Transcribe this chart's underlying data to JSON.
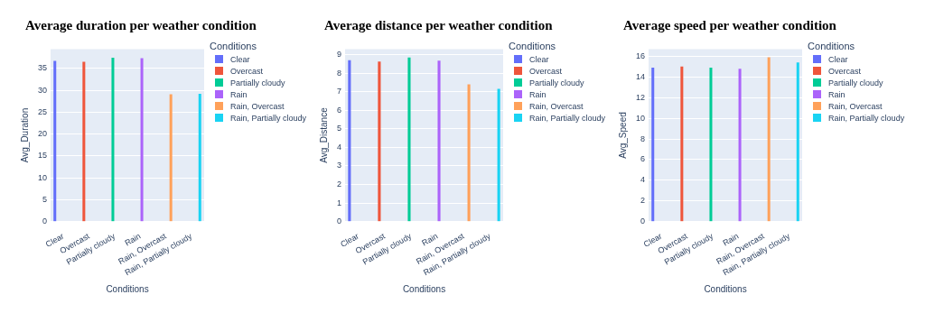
{
  "chart_data": [
    {
      "type": "bar",
      "title": "Average duration per weather condition",
      "xlabel": "Conditions",
      "ylabel": "Avg_Duration",
      "legend_title": "Conditions",
      "legend": "right",
      "grid": "y",
      "categories": [
        "Clear",
        "Overcast",
        "Partially cloudy",
        "Rain",
        "Rain, Overcast",
        "Rain, Partially cloudy"
      ],
      "ylim": [
        0,
        39.4
      ],
      "yticks": [
        0,
        5,
        10,
        15,
        20,
        25,
        30,
        35
      ],
      "series": [
        {
          "name": "Clear",
          "color": "#636efa",
          "values": [
            36.7,
            null,
            null,
            null,
            null,
            null
          ]
        },
        {
          "name": "Overcast",
          "color": "#ef553b",
          "values": [
            null,
            36.5,
            null,
            null,
            null,
            null
          ]
        },
        {
          "name": "Partially cloudy",
          "color": "#00cc96",
          "values": [
            null,
            null,
            37.4,
            null,
            null,
            null
          ]
        },
        {
          "name": "Rain",
          "color": "#ab63fa",
          "values": [
            null,
            null,
            null,
            37.3,
            null,
            null
          ]
        },
        {
          "name": "Rain, Overcast",
          "color": "#ffa15a",
          "values": [
            null,
            null,
            null,
            null,
            29.1,
            null
          ]
        },
        {
          "name": "Rain, Partially cloudy",
          "color": "#19d3f3",
          "values": [
            null,
            null,
            null,
            null,
            null,
            29.2
          ]
        }
      ]
    },
    {
      "type": "bar",
      "title": "Average distance per weather condition",
      "xlabel": "Conditions",
      "ylabel": "Avg_Distance",
      "legend_title": "Conditions",
      "legend": "right",
      "grid": "y",
      "categories": [
        "Clear",
        "Overcast",
        "Partially cloudy",
        "Rain",
        "Rain, Overcast",
        "Rain, Partially cloudy"
      ],
      "ylim": [
        0,
        9.3
      ],
      "yticks": [
        0,
        1,
        2,
        3,
        4,
        5,
        6,
        7,
        8,
        9
      ],
      "series": [
        {
          "name": "Clear",
          "color": "#636efa",
          "values": [
            8.7,
            null,
            null,
            null,
            null,
            null
          ]
        },
        {
          "name": "Overcast",
          "color": "#ef553b",
          "values": [
            null,
            8.63,
            null,
            null,
            null,
            null
          ]
        },
        {
          "name": "Partially cloudy",
          "color": "#00cc96",
          "values": [
            null,
            null,
            8.85,
            null,
            null,
            null
          ]
        },
        {
          "name": "Rain",
          "color": "#ab63fa",
          "values": [
            null,
            null,
            null,
            8.68,
            null,
            null
          ]
        },
        {
          "name": "Rain, Overcast",
          "color": "#ffa15a",
          "values": [
            null,
            null,
            null,
            null,
            7.4,
            null
          ]
        },
        {
          "name": "Rain, Partially cloudy",
          "color": "#19d3f3",
          "values": [
            null,
            null,
            null,
            null,
            null,
            7.16
          ]
        }
      ]
    },
    {
      "type": "bar",
      "title": "Average speed per weather condition",
      "xlabel": "Conditions",
      "ylabel": "Avg_Speed",
      "legend_title": "Conditions",
      "legend": "right",
      "grid": "y",
      "categories": [
        "Clear",
        "Overcast",
        "Partially cloudy",
        "Rain",
        "Rain, Overcast",
        "Rain, Partially cloudy"
      ],
      "ylim": [
        0,
        16.7
      ],
      "yticks": [
        0,
        2,
        4,
        6,
        8,
        10,
        12,
        14,
        16
      ],
      "series": [
        {
          "name": "Clear",
          "color": "#636efa",
          "values": [
            14.9,
            null,
            null,
            null,
            null,
            null
          ]
        },
        {
          "name": "Overcast",
          "color": "#ef553b",
          "values": [
            null,
            15.0,
            null,
            null,
            null,
            null
          ]
        },
        {
          "name": "Partially cloudy",
          "color": "#00cc96",
          "values": [
            null,
            null,
            14.9,
            null,
            null,
            null
          ]
        },
        {
          "name": "Rain",
          "color": "#ab63fa",
          "values": [
            null,
            null,
            null,
            14.8,
            null,
            null
          ]
        },
        {
          "name": "Rain, Overcast",
          "color": "#ffa15a",
          "values": [
            null,
            null,
            null,
            null,
            15.9,
            null
          ]
        },
        {
          "name": "Rain, Partially cloudy",
          "color": "#19d3f3",
          "values": [
            null,
            null,
            null,
            null,
            null,
            15.4
          ]
        }
      ]
    }
  ]
}
